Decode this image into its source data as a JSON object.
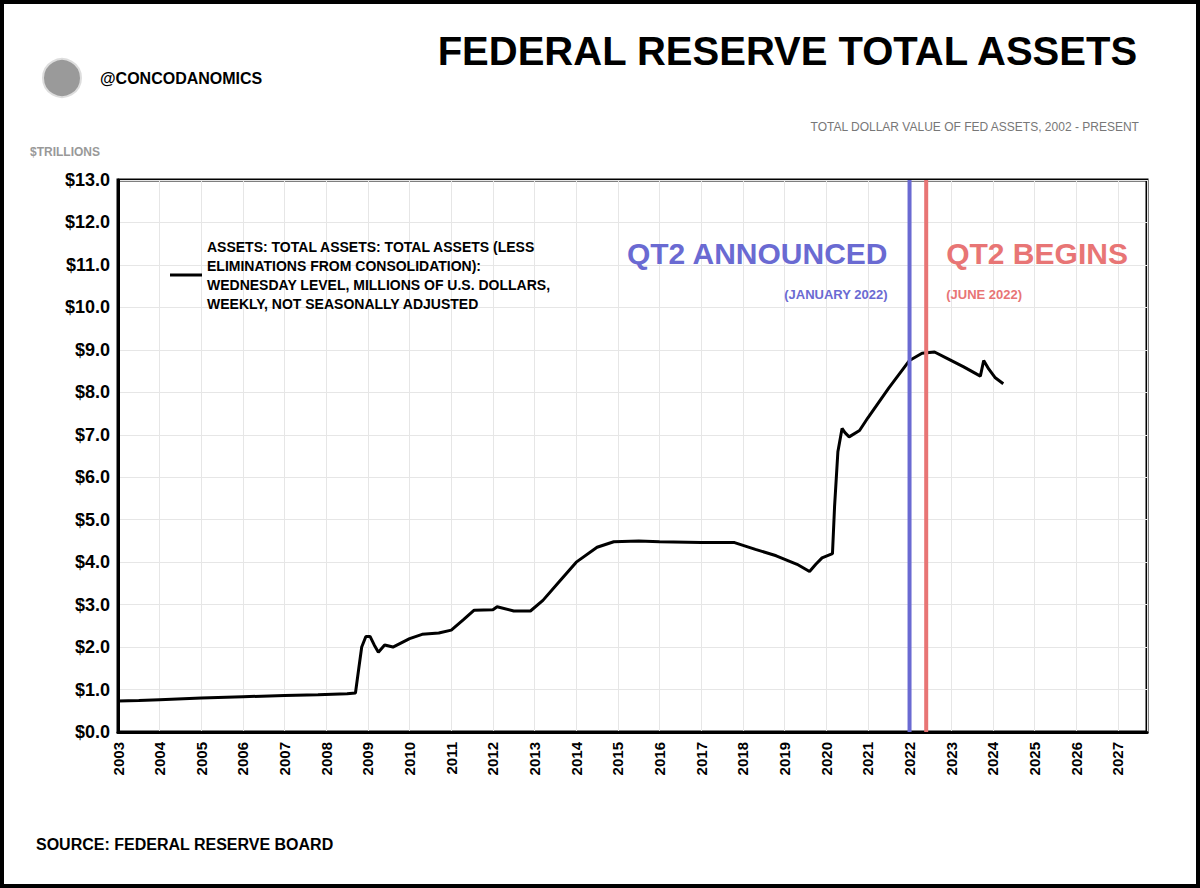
{
  "chart_data": {
    "type": "line",
    "byline": "@CONCODANOMICS",
    "title": "FEDERAL RESERVE TOTAL ASSETS",
    "subtitle": "TOTAL DOLLAR VALUE OF FED ASSETS, 2002 - PRESENT",
    "y_label": "$TRILLIONS",
    "source": "SOURCE: FEDERAL RESERVE BOARD",
    "x": [
      2003.0,
      2003.5,
      2004.0,
      2005.0,
      2006.0,
      2007.0,
      2007.8,
      2008.5,
      2008.7,
      2008.78,
      2008.85,
      2008.95,
      2009.05,
      2009.15,
      2009.25,
      2009.4,
      2009.6,
      2009.8,
      2010.0,
      2010.3,
      2010.7,
      2011.0,
      2011.3,
      2011.55,
      2012.0,
      2012.1,
      2012.5,
      2012.9,
      2013.2,
      2013.6,
      2014.0,
      2014.5,
      2014.9,
      2015.5,
      2016.0,
      2017.0,
      2017.8,
      2018.3,
      2018.8,
      2019.3,
      2019.6,
      2019.75,
      2019.9,
      2020.15,
      2020.2,
      2020.28,
      2020.38,
      2020.45,
      2020.55,
      2020.8,
      2021.0,
      2021.5,
      2022.0,
      2022.3,
      2022.6,
      2022.9,
      2023.3,
      2023.7,
      2023.78,
      2023.9,
      2024.05,
      2024.25
    ],
    "series": [
      {
        "name": "ASSETS: TOTAL ASSETS: TOTAL ASSETS (LESS ELIMINATIONS FROM CONSOLIDATION): WEDNESDAY LEVEL, MILLIONS OF U.S. DOLLARS, WEEKLY, NOT SEASONALLY ADJUSTED",
        "color": "#000000",
        "values": [
          0.73,
          0.74,
          0.76,
          0.8,
          0.83,
          0.86,
          0.88,
          0.9,
          0.92,
          1.5,
          2.0,
          2.25,
          2.25,
          2.05,
          1.88,
          2.05,
          2.0,
          2.1,
          2.2,
          2.3,
          2.33,
          2.4,
          2.65,
          2.87,
          2.88,
          2.95,
          2.85,
          2.85,
          3.1,
          3.55,
          4.0,
          4.35,
          4.48,
          4.5,
          4.48,
          4.46,
          4.46,
          4.3,
          4.15,
          3.95,
          3.78,
          3.95,
          4.1,
          4.2,
          5.3,
          6.6,
          7.15,
          7.05,
          6.95,
          7.1,
          7.4,
          8.1,
          8.75,
          8.92,
          8.95,
          8.8,
          8.6,
          8.38,
          8.75,
          8.55,
          8.35,
          8.2
        ]
      }
    ],
    "xlim": [
      2003,
      2027.7
    ],
    "xticks": [
      2003,
      2004,
      2005,
      2006,
      2007,
      2008,
      2009,
      2010,
      2011,
      2012,
      2013,
      2014,
      2015,
      2016,
      2017,
      2018,
      2019,
      2020,
      2021,
      2022,
      2023,
      2024,
      2025,
      2026,
      2027
    ],
    "ylim": [
      0,
      13
    ],
    "yticks": [
      {
        "value": 0,
        "label": "$0.0"
      },
      {
        "value": 1,
        "label": "$1.0"
      },
      {
        "value": 2,
        "label": "$2.0"
      },
      {
        "value": 3,
        "label": "$3.0"
      },
      {
        "value": 4,
        "label": "$4.0"
      },
      {
        "value": 5,
        "label": "$5.0"
      },
      {
        "value": 6,
        "label": "$6.0"
      },
      {
        "value": 7,
        "label": "$7.0"
      },
      {
        "value": 8,
        "label": "$8.0"
      },
      {
        "value": 9,
        "label": "$9.0"
      },
      {
        "value": 10,
        "label": "$10.0"
      },
      {
        "value": 11,
        "label": "$11.0"
      },
      {
        "value": 12,
        "label": "$12.0"
      },
      {
        "value": 13,
        "label": "$13.0"
      }
    ],
    "grid": true,
    "legend": "top-left",
    "annotations": [
      {
        "x": 2022.0,
        "text": "QT2 ANNOUNCED",
        "subtext": "(JANUARY 2022)",
        "color": "#6a6ad2"
      },
      {
        "x": 2022.4,
        "text": "QT2 BEGINS",
        "subtext": "(JUNE 2022)",
        "color": "#e87575"
      }
    ]
  }
}
